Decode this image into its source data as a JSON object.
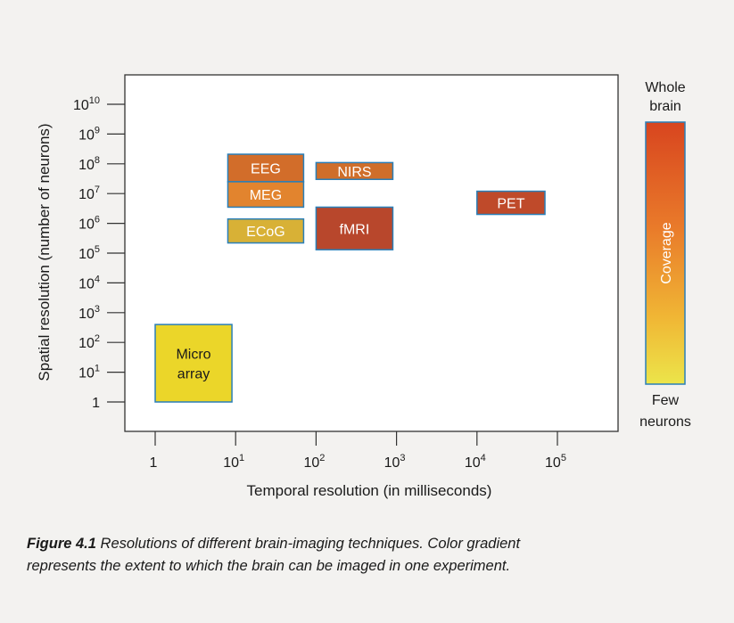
{
  "chart_data": {
    "type": "range-boxes",
    "xlabel": "Temporal resolution (in milliseconds)",
    "ylabel": "Spatial resolution (number of neurons)",
    "x_scale": "log10",
    "y_scale": "log10",
    "xlim": [
      0.3,
      1000000
    ],
    "ylim": [
      0.25,
      10000000000
    ],
    "x_ticks": [
      {
        "value": 1,
        "base": "1",
        "exp": ""
      },
      {
        "value": 10,
        "base": "10",
        "exp": "1"
      },
      {
        "value": 100,
        "base": "10",
        "exp": "2"
      },
      {
        "value": 1000,
        "base": "10",
        "exp": "3"
      },
      {
        "value": 10000,
        "base": "10",
        "exp": "4"
      },
      {
        "value": 100000,
        "base": "10",
        "exp": "5"
      }
    ],
    "y_ticks": [
      {
        "value": 1,
        "base": "1",
        "exp": ""
      },
      {
        "value": 10,
        "base": "10",
        "exp": "1"
      },
      {
        "value": 100,
        "base": "10",
        "exp": "2"
      },
      {
        "value": 1000,
        "base": "10",
        "exp": "3"
      },
      {
        "value": 10000,
        "base": "10",
        "exp": "4"
      },
      {
        "value": 100000,
        "base": "10",
        "exp": "5"
      },
      {
        "value": 1000000,
        "base": "10",
        "exp": "6"
      },
      {
        "value": 10000000,
        "base": "10",
        "exp": "7"
      },
      {
        "value": 100000000,
        "base": "10",
        "exp": "8"
      },
      {
        "value": 1000000000,
        "base": "10",
        "exp": "9"
      },
      {
        "value": 10000000000,
        "base": "10",
        "exp": "10"
      }
    ],
    "techniques": [
      {
        "name": "EEG",
        "x_min": 8,
        "x_max": 70,
        "y_min": 25000000,
        "y_max": 210000000,
        "color": "#d26d2a",
        "text": "light"
      },
      {
        "name": "MEG",
        "x_min": 8,
        "x_max": 70,
        "y_min": 3500000,
        "y_max": 25000000,
        "color": "#e2842e",
        "text": "light"
      },
      {
        "name": "ECoG",
        "x_min": 8,
        "x_max": 70,
        "y_min": 220000,
        "y_max": 1400000,
        "color": "#d8b136",
        "text": "light"
      },
      {
        "name": "NIRS",
        "x_min": 100,
        "x_max": 900,
        "y_min": 30000000,
        "y_max": 110000000,
        "color": "#cf6e2a",
        "text": "light"
      },
      {
        "name": "fMRI",
        "x_min": 100,
        "x_max": 900,
        "y_min": 130000,
        "y_max": 3500000,
        "color": "#b8472c",
        "text": "light"
      },
      {
        "name": "PET",
        "x_min": 10000,
        "x_max": 70000,
        "y_min": 2000000,
        "y_max": 12000000,
        "color": "#bf4a2a",
        "text": "light"
      },
      {
        "name": "Micro array",
        "lines": [
          "Micro",
          "array"
        ],
        "x_min": 1,
        "x_max": 9,
        "y_min": 1,
        "y_max": 400,
        "color": "#ebd629",
        "text": "dark"
      }
    ],
    "legend": {
      "title_top": [
        "Whole",
        "brain"
      ],
      "title_bottom": [
        "Few",
        "neurons"
      ],
      "label": "Coverage",
      "colors": [
        "#d8451f",
        "#e97a2a",
        "#f0b735",
        "#ece54a"
      ]
    }
  },
  "caption": {
    "figure_number": "Figure 4.1",
    "text_line1": " Resolutions of different brain-imaging techniques. Color gradient",
    "text_line2": "represents the extent to which the brain can be imaged in one experiment."
  }
}
